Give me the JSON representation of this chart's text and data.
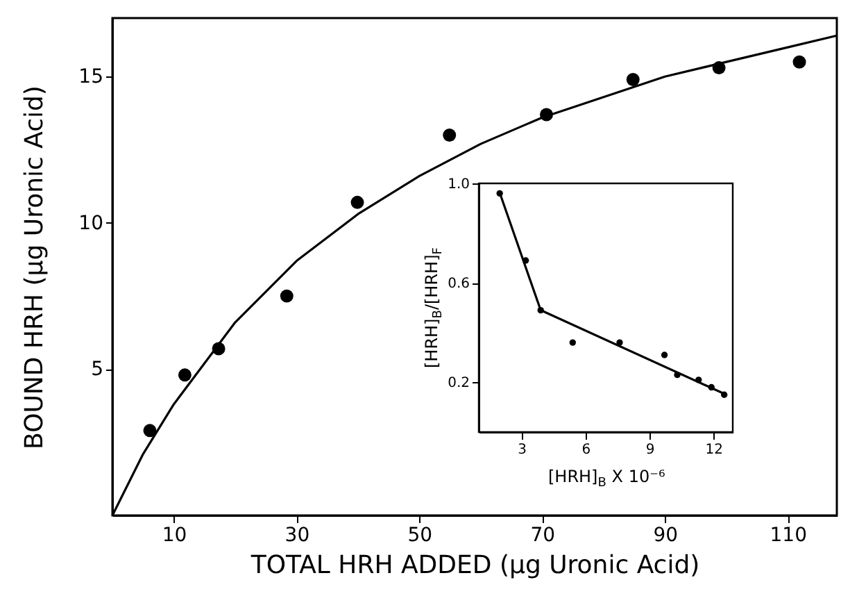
{
  "chart_data": [
    {
      "type": "scatter",
      "xlabel": "TOTAL HRH ADDED (µg Uronic Acid)",
      "ylabel": "BOUND HRH (µg Uronic Acid)",
      "xlim": [
        0,
        118
      ],
      "ylim": [
        0,
        17
      ],
      "xticks": [
        10,
        30,
        50,
        70,
        90,
        110
      ],
      "yticks": [
        5,
        10,
        15
      ],
      "series": [
        {
          "marker": "circle",
          "color": "#000000",
          "x": [
            6.1,
            11.8,
            17.3,
            28.4,
            39.9,
            54.9,
            70.7,
            84.8,
            98.8,
            111.9
          ],
          "values": [
            2.9,
            4.8,
            5.7,
            7.5,
            10.7,
            13.0,
            13.7,
            14.9,
            15.3,
            15.5
          ]
        },
        {
          "type": "line",
          "marker": "none",
          "color": "#000000",
          "x": [
            0,
            5,
            10,
            20,
            30,
            40,
            50,
            60,
            70,
            80,
            90,
            100,
            110,
            118
          ],
          "values": [
            0,
            2.1,
            3.8,
            6.6,
            8.7,
            10.3,
            11.6,
            12.7,
            13.6,
            14.3,
            15.0,
            15.5,
            16.0,
            16.4
          ]
        }
      ]
    },
    {
      "type": "scatter",
      "xlabel": "[HRH]$_{B}$ X 10⁻⁶",
      "ylabel": "[HRH]$_{B}$/[HRH]$_{F}$",
      "xlim": [
        1,
        12.9
      ],
      "ylim": [
        0,
        1
      ],
      "xticks": [
        3,
        6,
        9,
        12
      ],
      "yticks": [
        0.2,
        0.6,
        {
          "value": 1,
          "label": "1.0"
        }
      ],
      "series": [
        {
          "marker": "circle",
          "color": "#000000",
          "x": [
            1.98,
            3.2,
            3.9,
            5.4,
            7.6,
            9.7,
            10.3,
            11.3,
            11.9,
            12.5
          ],
          "values": [
            0.96,
            0.69,
            0.49,
            0.36,
            0.36,
            0.31,
            0.23,
            0.21,
            0.18,
            0.15
          ]
        },
        {
          "type": "line",
          "marker": "none",
          "color": "#000000",
          "x": [
            1.95,
            3.9,
            12.6
          ],
          "values": [
            0.97,
            0.49,
            0.15
          ]
        }
      ]
    }
  ]
}
